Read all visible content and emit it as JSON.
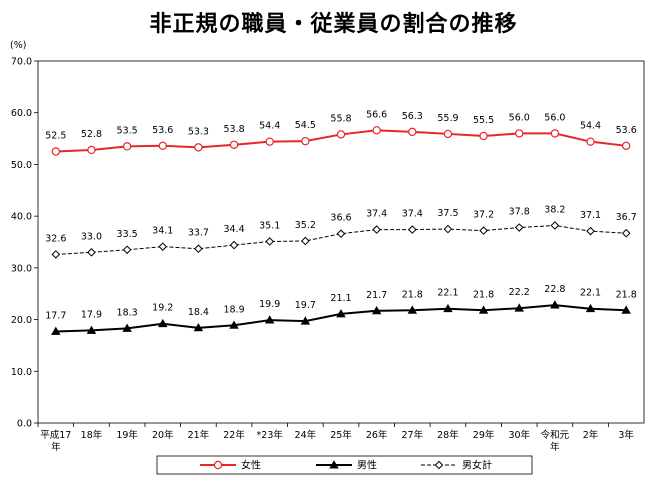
{
  "chart_data": {
    "type": "line",
    "title": "非正規の職員・従業員の割合の推移",
    "y_unit": "(%)",
    "ylim": [
      0,
      70
    ],
    "y_ticks": [
      "0.0",
      "10.0",
      "20.0",
      "30.0",
      "40.0",
      "50.0",
      "60.0",
      "70.0"
    ],
    "y_tick_values": [
      0,
      10,
      20,
      30,
      40,
      50,
      60,
      70
    ],
    "categories": [
      [
        "平成17",
        "年"
      ],
      [
        "18年"
      ],
      [
        "19年"
      ],
      [
        "20年"
      ],
      [
        "21年"
      ],
      [
        "22年"
      ],
      [
        "*23年"
      ],
      [
        "24年"
      ],
      [
        "25年"
      ],
      [
        "26年"
      ],
      [
        "27年"
      ],
      [
        "28年"
      ],
      [
        "29年"
      ],
      [
        "30年"
      ],
      [
        "令和元",
        "年"
      ],
      [
        "2年"
      ],
      [
        "3年"
      ]
    ],
    "grid": false,
    "legend_position": "bottom",
    "series": [
      {
        "name": "女性",
        "color": "#e8262a",
        "marker": "circle",
        "line": "solid",
        "values": [
          52.5,
          52.8,
          53.5,
          53.6,
          53.3,
          53.8,
          54.4,
          54.5,
          55.8,
          56.6,
          56.3,
          55.9,
          55.5,
          56.0,
          56.0,
          54.4,
          53.6
        ],
        "labels": [
          "52.5",
          "52.8",
          "53.5",
          "53.6",
          "53.3",
          "53.8",
          "54.4",
          "54.5",
          "55.8",
          "56.6",
          "56.3",
          "55.9",
          "55.5",
          "56.0",
          "56.0",
          "54.4",
          "53.6"
        ]
      },
      {
        "name": "男性",
        "color": "#000000",
        "marker": "triangle",
        "line": "solid",
        "values": [
          17.7,
          17.9,
          18.3,
          19.2,
          18.4,
          18.9,
          19.9,
          19.7,
          21.1,
          21.7,
          21.8,
          22.1,
          21.8,
          22.2,
          22.8,
          22.1,
          21.8
        ],
        "labels": [
          "17.7",
          "17.9",
          "18.3",
          "19.2",
          "18.4",
          "18.9",
          "19.9",
          "19.7",
          "21.1",
          "21.7",
          "21.8",
          "22.1",
          "21.8",
          "22.2",
          "22.8",
          "22.1",
          "21.8"
        ]
      },
      {
        "name": "男女計",
        "color": "#000000",
        "marker": "diamond",
        "line": "dashed",
        "values": [
          32.6,
          33.0,
          33.5,
          34.1,
          33.7,
          34.4,
          35.1,
          35.2,
          36.6,
          37.4,
          37.4,
          37.5,
          37.2,
          37.8,
          38.2,
          37.1,
          36.7
        ],
        "labels": [
          "32.6",
          "33.0",
          "33.5",
          "34.1",
          "33.7",
          "34.4",
          "35.1",
          "35.2",
          "36.6",
          "37.4",
          "37.4",
          "37.5",
          "37.2",
          "37.8",
          "38.2",
          "37.1",
          "36.7"
        ]
      }
    ]
  }
}
